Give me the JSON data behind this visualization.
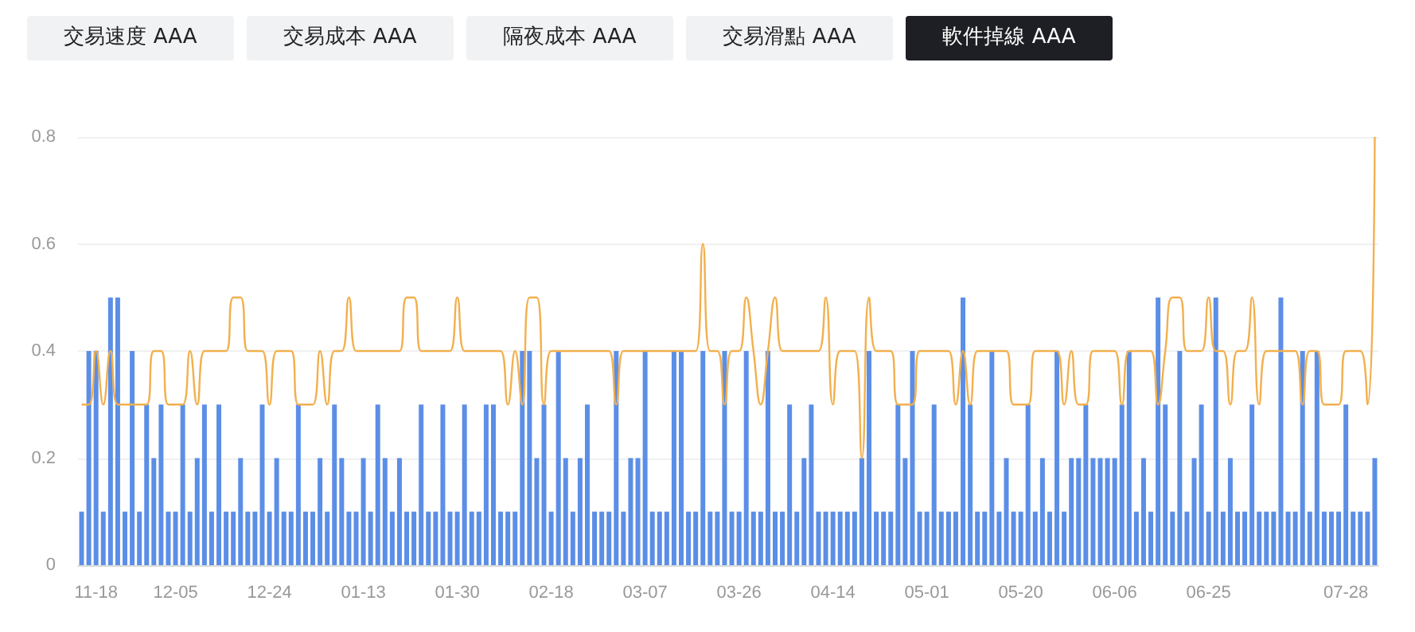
{
  "chart_data": {
    "type": "bar",
    "annotations": [
      "交易速度 AAA",
      "交易成本 AAA",
      "隔夜成本 AAA",
      "交易滑點 AAA",
      "軟件掉線 AAA"
    ],
    "categories": [
      null,
      null,
      "11-18",
      null,
      null,
      null,
      null,
      null,
      null,
      null,
      null,
      null,
      null,
      "12-05",
      null,
      null,
      null,
      null,
      null,
      null,
      null,
      null,
      null,
      null,
      null,
      null,
      "12-24",
      null,
      null,
      null,
      null,
      null,
      null,
      null,
      null,
      null,
      null,
      null,
      null,
      "01-13",
      null,
      null,
      null,
      null,
      null,
      null,
      null,
      null,
      null,
      null,
      null,
      null,
      "01-30",
      null,
      null,
      null,
      null,
      null,
      null,
      null,
      null,
      null,
      null,
      null,
      null,
      "02-18",
      null,
      null,
      null,
      null,
      null,
      null,
      null,
      null,
      null,
      null,
      null,
      null,
      "03-07",
      null,
      null,
      null,
      null,
      null,
      null,
      null,
      null,
      null,
      null,
      null,
      null,
      "03-26",
      null,
      null,
      null,
      null,
      null,
      null,
      null,
      null,
      null,
      null,
      null,
      null,
      "04-14",
      null,
      null,
      null,
      null,
      null,
      null,
      null,
      null,
      null,
      null,
      null,
      null,
      "05-01",
      null,
      null,
      null,
      null,
      null,
      null,
      null,
      null,
      null,
      null,
      null,
      null,
      "05-20",
      null,
      null,
      null,
      null,
      null,
      null,
      null,
      null,
      null,
      null,
      null,
      null,
      "06-06",
      null,
      null,
      null,
      null,
      null,
      null,
      null,
      null,
      null,
      null,
      null,
      null,
      "06-25",
      null,
      null,
      null,
      null,
      null,
      null,
      null,
      null,
      null,
      null,
      null,
      null,
      null,
      null,
      null,
      null,
      null,
      null,
      "07-28",
      null,
      null,
      null,
      null
    ],
    "series": [
      {
        "color": "#5b8ee6",
        "values": [
          0.1,
          0.4,
          0.4,
          0.1,
          0.5,
          0.5,
          0.1,
          0.4,
          0.1,
          0.3,
          0.2,
          0.3,
          0.1,
          0.1,
          0.3,
          0.1,
          0.2,
          0.3,
          0.1,
          0.3,
          0.1,
          0.1,
          0.2,
          0.1,
          0.1,
          0.3,
          0.1,
          0.2,
          0.1,
          0.1,
          0.3,
          0.1,
          0.1,
          0.2,
          0.1,
          0.3,
          0.2,
          0.1,
          0.1,
          0.2,
          0.1,
          0.3,
          0.2,
          0.1,
          0.2,
          0.1,
          0.1,
          0.3,
          0.1,
          0.1,
          0.3,
          0.1,
          0.1,
          0.3,
          0.1,
          0.1,
          0.3,
          0.3,
          0.1,
          0.1,
          0.1,
          0.4,
          0.4,
          0.2,
          0.3,
          0.1,
          0.4,
          0.2,
          0.1,
          0.2,
          0.3,
          0.1,
          0.1,
          0.1,
          0.4,
          0.1,
          0.2,
          0.2,
          0.4,
          0.1,
          0.1,
          0.1,
          0.4,
          0.4,
          0.1,
          0.1,
          0.4,
          0.1,
          0.1,
          0.4,
          0.1,
          0.1,
          0.4,
          0.1,
          0.1,
          0.4,
          0.1,
          0.1,
          0.3,
          0.1,
          0.2,
          0.3,
          0.1,
          0.1,
          0.1,
          0.1,
          0.1,
          0.1,
          0.2,
          0.4,
          0.1,
          0.1,
          0.1,
          0.3,
          0.2,
          0.4,
          0.1,
          0.1,
          0.3,
          0.1,
          0.1,
          0.1,
          0.5,
          0.3,
          0.1,
          0.1,
          0.4,
          0.1,
          0.2,
          0.1,
          0.1,
          0.3,
          0.1,
          0.2,
          0.1,
          0.4,
          0.1,
          0.2,
          0.2,
          0.3,
          0.2,
          0.2,
          0.2,
          0.2,
          0.3,
          0.4,
          0.1,
          0.2,
          0.1,
          0.5,
          0.3,
          0.1,
          0.4,
          0.1,
          0.2,
          0.3,
          0.1,
          0.5,
          0.1,
          0.2,
          0.1,
          0.1,
          0.3,
          0.1,
          0.1,
          0.1,
          0.5,
          0.1,
          0.1,
          0.4,
          0.1,
          0.4,
          0.1,
          0.1,
          0.1,
          0.3,
          0.1,
          0.1,
          0.1,
          0.2
        ]
      },
      {
        "type": "line",
        "color": "#f2b04e",
        "values": [
          0.3,
          0.3,
          0.4,
          0.3,
          0.4,
          0.3,
          0.3,
          0.3,
          0.3,
          0.3,
          0.4,
          0.4,
          0.3,
          0.3,
          0.3,
          0.4,
          0.3,
          0.4,
          0.4,
          0.4,
          0.4,
          0.5,
          0.5,
          0.4,
          0.4,
          0.4,
          0.3,
          0.4,
          0.4,
          0.4,
          0.3,
          0.3,
          0.3,
          0.4,
          0.3,
          0.4,
          0.4,
          0.5,
          0.4,
          0.4,
          0.4,
          0.4,
          0.4,
          0.4,
          0.4,
          0.5,
          0.5,
          0.4,
          0.4,
          0.4,
          0.4,
          0.4,
          0.5,
          0.4,
          0.4,
          0.4,
          0.4,
          0.4,
          0.4,
          0.3,
          0.4,
          0.3,
          0.5,
          0.5,
          0.3,
          0.4,
          0.4,
          0.4,
          0.4,
          0.4,
          0.4,
          0.4,
          0.4,
          0.4,
          0.3,
          0.4,
          0.4,
          0.4,
          0.4,
          0.4,
          0.4,
          0.4,
          0.4,
          0.4,
          0.4,
          0.4,
          0.6,
          0.4,
          0.4,
          0.3,
          0.4,
          0.4,
          0.5,
          0.4,
          0.3,
          0.4,
          0.5,
          0.4,
          0.4,
          0.4,
          0.4,
          0.4,
          0.4,
          0.5,
          0.3,
          0.4,
          0.4,
          0.4,
          0.2,
          0.5,
          0.4,
          0.4,
          0.4,
          0.3,
          0.3,
          0.3,
          0.4,
          0.4,
          0.4,
          0.4,
          0.4,
          0.3,
          0.4,
          0.3,
          0.4,
          0.4,
          0.4,
          0.4,
          0.4,
          0.3,
          0.3,
          0.3,
          0.4,
          0.4,
          0.4,
          0.4,
          0.3,
          0.4,
          0.3,
          0.3,
          0.4,
          0.4,
          0.4,
          0.4,
          0.3,
          0.4,
          0.4,
          0.4,
          0.4,
          0.3,
          0.4,
          0.5,
          0.5,
          0.4,
          0.4,
          0.4,
          0.5,
          0.4,
          0.4,
          0.3,
          0.4,
          0.4,
          0.5,
          0.3,
          0.4,
          0.4,
          0.4,
          0.4,
          0.4,
          0.3,
          0.4,
          0.4,
          0.3,
          0.3,
          0.3,
          0.4,
          0.4,
          0.4,
          0.3,
          0.8
        ]
      }
    ],
    "ylim": [
      0,
      0.8
    ],
    "yticks": [
      0,
      0.2,
      0.4,
      0.6,
      0.8
    ],
    "grid": "y",
    "marker": "none",
    "line_style": "solid"
  }
}
